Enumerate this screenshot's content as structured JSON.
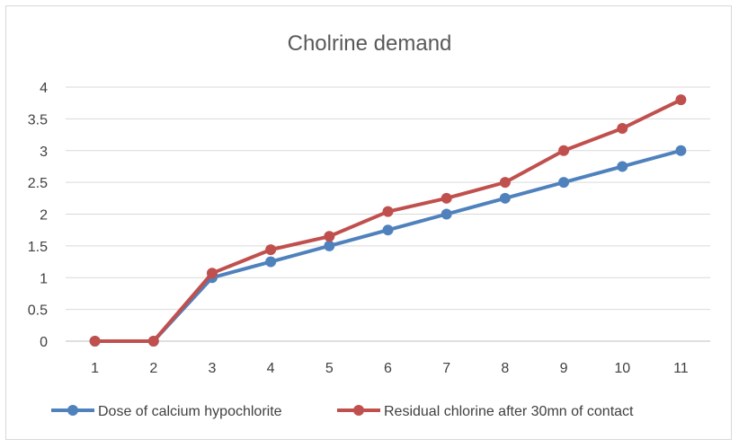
{
  "chart_data": {
    "type": "line",
    "title": "Cholrine demand",
    "xlabel": "",
    "ylabel": "",
    "categories": [
      "1",
      "2",
      "3",
      "4",
      "5",
      "6",
      "7",
      "8",
      "9",
      "10",
      "11"
    ],
    "ylim": [
      0,
      4
    ],
    "yticks": [
      "0",
      "0.5",
      "1",
      "1.5",
      "2",
      "2.5",
      "3",
      "3.5",
      "4"
    ],
    "grid": true,
    "legend_position": "bottom",
    "series": [
      {
        "name": "Dose of calcium hypochlorite",
        "color": "#4F81BD",
        "values": [
          0,
          0,
          1,
          1.25,
          1.5,
          1.75,
          2,
          2.25,
          2.5,
          2.75,
          3
        ]
      },
      {
        "name": "Residual chlorine after 30mn of contact",
        "color": "#C0504D",
        "values": [
          0,
          0,
          1.07,
          1.44,
          1.65,
          2.04,
          2.25,
          2.5,
          3.0,
          3.35,
          3.8
        ]
      }
    ]
  }
}
